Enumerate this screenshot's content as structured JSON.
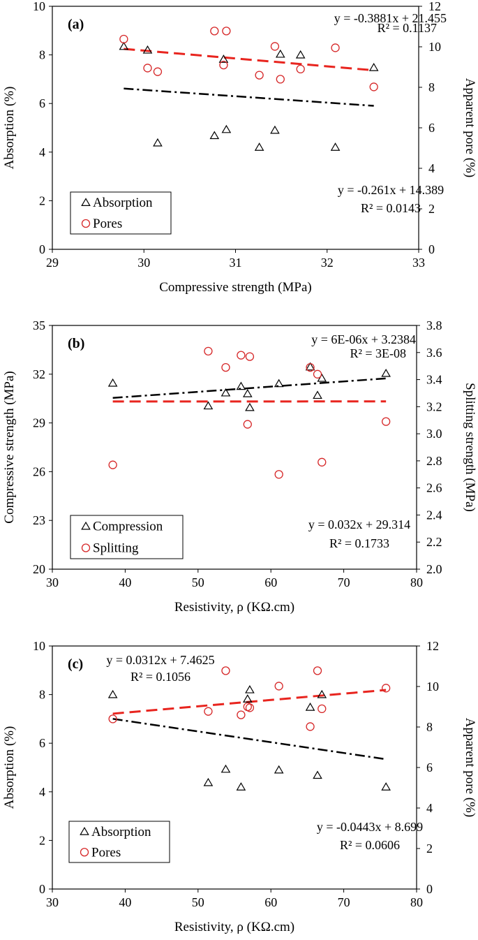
{
  "chart_data": [
    {
      "panel_label": "(a)",
      "type": "scatter",
      "xlabel": "Compressive strength (MPa)",
      "ylabel": "Absorption (%)",
      "y2label": "Apparent pore (%)",
      "xlim": [
        29,
        33
      ],
      "ylim": [
        0,
        10
      ],
      "y2lim": [
        0,
        12
      ],
      "xticks": [
        "29",
        "30",
        "31",
        "32",
        "33"
      ],
      "yticks": [
        "0",
        "2",
        "4",
        "6",
        "8",
        "10"
      ],
      "y2ticks": [
        "0",
        "2",
        "4",
        "6",
        "8",
        "10",
        "12"
      ],
      "legend_position": "bottom-left",
      "series": [
        {
          "name": "Absorption",
          "marker": "triangle",
          "color": "#000000",
          "axis": "left",
          "points": [
            [
              29.78,
              8.35
            ],
            [
              30.04,
              8.2
            ],
            [
              30.15,
              4.38
            ],
            [
              30.77,
              4.68
            ],
            [
              30.87,
              7.82
            ],
            [
              30.9,
              4.93
            ],
            [
              31.26,
              4.2
            ],
            [
              31.43,
              4.9
            ],
            [
              31.49,
              8.03
            ],
            [
              31.71,
              8.0
            ],
            [
              32.09,
              4.2
            ],
            [
              32.51,
              7.48
            ]
          ],
          "trendline": {
            "x": [
              29.78,
              32.51
            ],
            "style": "dash-dot",
            "color": "#000000",
            "equation": "y = -0.261x + 14.389",
            "r2": "R² = 0.0143"
          }
        },
        {
          "name": "Pores",
          "marker": "circle",
          "color": "#d62728",
          "axis": "right",
          "points": [
            [
              29.78,
              10.38
            ],
            [
              30.04,
              8.95
            ],
            [
              30.15,
              8.77
            ],
            [
              30.77,
              10.78
            ],
            [
              30.87,
              9.1
            ],
            [
              30.9,
              10.78
            ],
            [
              31.26,
              8.6
            ],
            [
              31.43,
              10.02
            ],
            [
              31.49,
              8.4
            ],
            [
              31.71,
              8.9
            ],
            [
              32.09,
              9.95
            ],
            [
              32.51,
              8.02
            ]
          ],
          "trendline": {
            "x": [
              29.78,
              32.51
            ],
            "style": "dash",
            "color": "#e8251f",
            "equation": "y = -0.3881x + 21.455",
            "r2": "R² = 0.1137"
          }
        }
      ]
    },
    {
      "panel_label": "(b)",
      "type": "scatter",
      "xlabel": "Resistivity, ρ (KΩ.cm)",
      "ylabel": "Compressive strength (MPa)",
      "y2label": "Splitting strength (MPa)",
      "xlim": [
        30,
        80
      ],
      "ylim": [
        20,
        35
      ],
      "y2lim": [
        2.0,
        3.8
      ],
      "xticks": [
        "30",
        "40",
        "50",
        "60",
        "70",
        "80"
      ],
      "yticks": [
        "20",
        "23",
        "26",
        "29",
        "32",
        "35"
      ],
      "y2ticks": [
        "2.0",
        "2.2",
        "2.4",
        "2.6",
        "2.8",
        "3.0",
        "3.2",
        "3.4",
        "3.6",
        "3.8"
      ],
      "legend_position": "bottom-left",
      "series": [
        {
          "name": "Compression",
          "marker": "triangle",
          "color": "#000000",
          "axis": "left",
          "points": [
            [
              38.3,
              31.45
            ],
            [
              51.4,
              30.05
            ],
            [
              53.8,
              30.85
            ],
            [
              55.9,
              31.25
            ],
            [
              56.8,
              30.8
            ],
            [
              57.1,
              29.95
            ],
            [
              61.1,
              31.42
            ],
            [
              65.4,
              32.45
            ],
            [
              66.4,
              30.7
            ],
            [
              67.0,
              31.75
            ],
            [
              75.8,
              32.05
            ]
          ],
          "trendline": {
            "x": [
              38.3,
              75.8
            ],
            "style": "dash-dot",
            "color": "#000000",
            "equation": "y = 0.032x + 29.314",
            "r2": "R² = 0.1733"
          }
        },
        {
          "name": "Splitting",
          "marker": "circle",
          "color": "#d62728",
          "axis": "right",
          "points": [
            [
              38.3,
              2.77
            ],
            [
              51.4,
              3.61
            ],
            [
              53.8,
              3.49
            ],
            [
              55.9,
              3.58
            ],
            [
              56.8,
              3.07
            ],
            [
              57.1,
              3.57
            ],
            [
              61.1,
              2.7
            ],
            [
              65.4,
              3.49
            ],
            [
              66.4,
              3.44
            ],
            [
              67.0,
              2.79
            ],
            [
              75.8,
              3.09
            ]
          ],
          "trendline": {
            "x": [
              38.3,
              75.8
            ],
            "style": "dash",
            "color": "#e8251f",
            "equation": "y = 6E-06x + 3.2384",
            "r2": "R² = 3E-08"
          }
        }
      ]
    },
    {
      "panel_label": "(c)",
      "type": "scatter",
      "xlabel": "Resistivity, ρ (KΩ.cm)",
      "ylabel": "Absorption (%)",
      "y2label": "Apparent pore (%)",
      "xlim": [
        30,
        80
      ],
      "ylim": [
        0,
        10
      ],
      "y2lim": [
        0,
        12
      ],
      "xticks": [
        "30",
        "40",
        "50",
        "60",
        "70",
        "80"
      ],
      "yticks": [
        "0",
        "2",
        "4",
        "6",
        "8",
        "10"
      ],
      "y2ticks": [
        "0",
        "2",
        "4",
        "6",
        "8",
        "10",
        "12"
      ],
      "legend_position": "bottom-left",
      "series": [
        {
          "name": "Absorption",
          "marker": "triangle",
          "color": "#000000",
          "axis": "left",
          "points": [
            [
              38.3,
              8.0
            ],
            [
              51.4,
              4.38
            ],
            [
              53.8,
              4.93
            ],
            [
              55.9,
              4.2
            ],
            [
              56.8,
              7.82
            ],
            [
              57.1,
              8.2
            ],
            [
              61.1,
              4.9
            ],
            [
              65.4,
              7.48
            ],
            [
              66.4,
              4.68
            ],
            [
              67.0,
              8.0
            ],
            [
              75.8,
              4.2
            ]
          ],
          "trendline": {
            "x": [
              38.3,
              75.8
            ],
            "style": "dash-dot",
            "color": "#000000",
            "equation": "y = -0.0443x + 8.699",
            "r2": "R² = 0.0606"
          }
        },
        {
          "name": "Pores",
          "marker": "circle",
          "color": "#d62728",
          "axis": "right",
          "points": [
            [
              38.3,
              8.4
            ],
            [
              51.4,
              8.77
            ],
            [
              53.8,
              10.78
            ],
            [
              55.9,
              8.6
            ],
            [
              56.8,
              9.0
            ],
            [
              57.1,
              8.95
            ],
            [
              61.1,
              10.02
            ],
            [
              65.4,
              8.02
            ],
            [
              66.4,
              10.78
            ],
            [
              67.0,
              8.9
            ],
            [
              75.8,
              9.92
            ]
          ],
          "trendline": {
            "x": [
              38.3,
              75.8
            ],
            "style": "dash",
            "color": "#e8251f",
            "equation": "y = 0.0312x + 7.4625",
            "r2": "R² = 0.1056"
          }
        }
      ]
    }
  ]
}
